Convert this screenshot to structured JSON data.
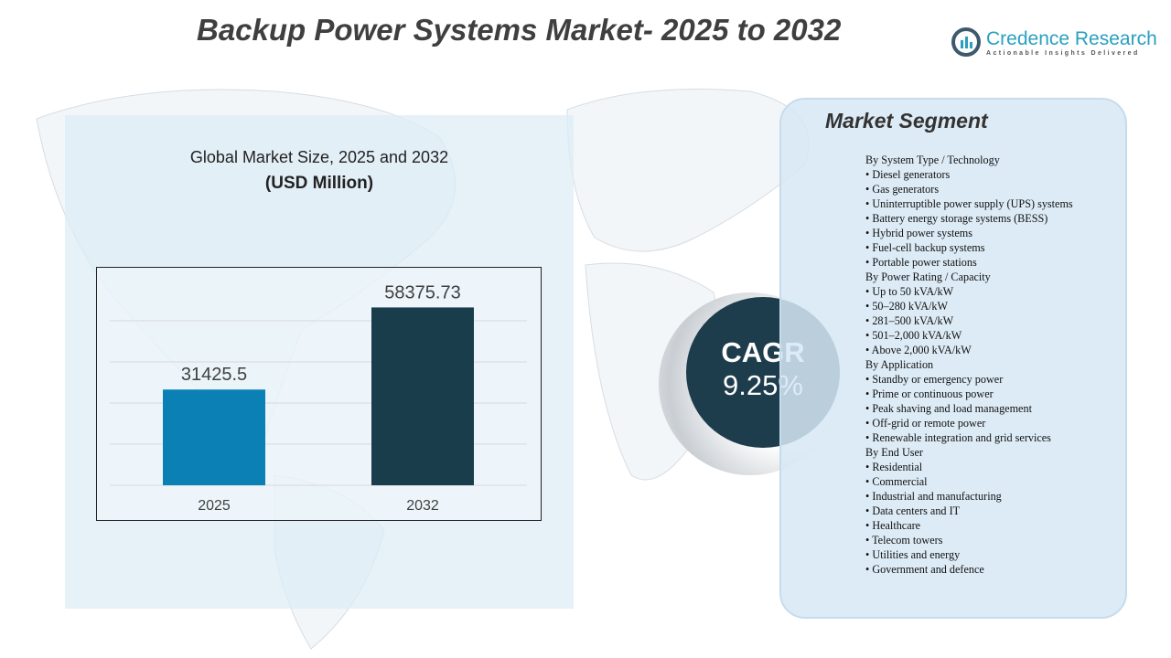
{
  "title": "Backup Power Systems Market- 2025 to 2032",
  "logo": {
    "name": "Credence Research",
    "tagline": "Actionable Insights Delivered"
  },
  "chart_header": {
    "title": "Global Market Size, 2025 and 2032",
    "unit": "(USD Million)"
  },
  "chart_data": {
    "type": "bar",
    "title": "Global Market Size, 2025 and 2032",
    "ylabel": "(USD Million)",
    "categories": [
      "2025",
      "2032"
    ],
    "values": [
      31425.5,
      58375.73
    ],
    "labels": [
      "31425.5",
      "58375.73"
    ],
    "colors": [
      "#0a80b4",
      "#1a3d4b"
    ],
    "ylim": [
      0,
      66000
    ],
    "grid": true
  },
  "cagr": {
    "label": "CAGR",
    "value": "9.25%"
  },
  "segment": {
    "title": "Market Segment",
    "items": [
      "By System Type / Technology",
      "• Diesel generators",
      "• Gas generators",
      "• Uninterruptible power supply (UPS)  systems",
      "• Battery energy storage systems (BESS)",
      "• Hybrid power systems",
      "• Fuel-cell backup systems",
      "• Portable power stations",
      "By Power Rating / Capacity",
      "• Up to 50 kVA/kW",
      "• 50–280 kVA/kW",
      "• 281–500 kVA/kW",
      "• 501–2,000 kVA/kW",
      "• Above 2,000 kVA/kW",
      "By Application",
      "• Standby or emergency power",
      "• Prime or continuous power",
      "• Peak shaving and load management",
      "• Off-grid or remote power",
      "• Renewable integration and grid services",
      "By End User",
      "• Residential",
      "• Commercial",
      "• Industrial and manufacturing",
      "• Data centers and IT",
      "• Healthcare",
      "• Telecom towers",
      "• Utilities and energy",
      "• Government and defence"
    ]
  }
}
